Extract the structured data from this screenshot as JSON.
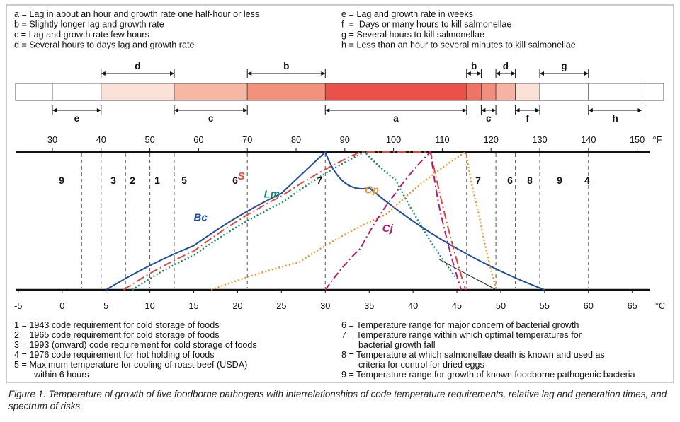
{
  "legend_letters": [
    "a = Lag in about an hour and growth rate one half-hour or less",
    "b = Slightly longer lag and growth rate",
    "c = Lag and growth rate few hours",
    "d = Several hours to days lag and growth rate",
    "e = Lag and growth rate in weeks",
    "f  =  Days or many hours to kill salmonellae",
    "g = Several hours to kill salmonellae",
    "h = Less than an hour to several minutes to kill salmonellae"
  ],
  "bar_segments": [
    {
      "from_f": 30,
      "to_f": 40,
      "color": "#ffffff"
    },
    {
      "from_f": 40,
      "to_f": 55,
      "color": "#fbe2d8"
    },
    {
      "from_f": 55,
      "to_f": 70,
      "color": "#f6b7a3"
    },
    {
      "from_f": 70,
      "to_f": 86,
      "color": "#f2917c"
    },
    {
      "from_f": 86,
      "to_f": 115,
      "color": "#e9524a"
    },
    {
      "from_f": 115,
      "to_f": 118,
      "color": "#ee7563"
    },
    {
      "from_f": 118,
      "to_f": 121,
      "color": "#f28e7b"
    },
    {
      "from_f": 121,
      "to_f": 125,
      "color": "#f6b3a1"
    },
    {
      "from_f": 125,
      "to_f": 130,
      "color": "#fbe1d6"
    },
    {
      "from_f": 130,
      "to_f": 140,
      "color": "#ffffff"
    },
    {
      "from_f": 140,
      "to_f": 151,
      "color": "#ffffff"
    }
  ],
  "top_arrows": [
    {
      "label": "d",
      "from_f": 40,
      "to_f": 55
    },
    {
      "label": "b",
      "from_f": 70,
      "to_f": 86
    },
    {
      "label": "b",
      "from_f": 115,
      "to_f": 118
    },
    {
      "label": "d",
      "from_f": 121,
      "to_f": 125
    },
    {
      "label": "g",
      "from_f": 130,
      "to_f": 140
    }
  ],
  "bottom_arrows": [
    {
      "label": "e",
      "from_f": 30,
      "to_f": 40
    },
    {
      "label": "c",
      "from_f": 55,
      "to_f": 70
    },
    {
      "label": "a",
      "from_f": 86,
      "to_f": 115
    },
    {
      "label": "c",
      "from_f": 118,
      "to_f": 121
    },
    {
      "label": "f",
      "from_f": 125,
      "to_f": 130
    },
    {
      "label": "h",
      "from_f": 140,
      "to_f": 151
    }
  ],
  "chart_data": {
    "type": "line",
    "f_unit": "°F",
    "c_unit": "°C",
    "f_ticks": [
      30,
      40,
      50,
      60,
      70,
      80,
      90,
      100,
      110,
      120,
      130,
      140,
      150
    ],
    "c_ticks": [
      -5,
      0,
      5,
      10,
      15,
      20,
      25,
      30,
      35,
      40,
      45,
      50,
      55,
      60,
      65
    ],
    "reference_lines": [
      {
        "f": 36,
        "label": "9"
      },
      {
        "f": 40,
        "label": "3"
      },
      {
        "f": 45,
        "label": "2"
      },
      {
        "f": 50,
        "label": "1"
      },
      {
        "f": 55,
        "label": "5"
      },
      {
        "f": 70,
        "label": "6"
      },
      {
        "f": 86,
        "label": "7"
      },
      {
        "f": 115,
        "label": "7"
      },
      {
        "f": 121,
        "label": "6"
      },
      {
        "f": 125,
        "label": "8"
      },
      {
        "f": 130,
        "label": "9"
      },
      {
        "f": 140,
        "label": "4"
      }
    ],
    "series": [
      {
        "name": "Bc",
        "color": "#1f4e9e",
        "style": "solid",
        "label_pos_c": [
          15,
          50
        ],
        "points_c": [
          [
            5,
            0
          ],
          [
            15,
            32
          ],
          [
            25,
            70
          ],
          [
            30,
            100
          ],
          [
            35,
            74
          ],
          [
            45,
            30
          ],
          [
            55,
            0
          ]
        ]
      },
      {
        "name": "S",
        "color": "#e4473a",
        "style": "dashdot",
        "label_pos_c": [
          20,
          80
        ],
        "points_c": [
          [
            7,
            0
          ],
          [
            15,
            28
          ],
          [
            25,
            68
          ],
          [
            34,
            100
          ],
          [
            42,
            100
          ],
          [
            46,
            0
          ]
        ]
      },
      {
        "name": "Lm",
        "color": "#138a6b",
        "style": "dotted",
        "label_pos_c": [
          23,
          67
        ],
        "points_c": [
          [
            8,
            0
          ],
          [
            15,
            25
          ],
          [
            25,
            63
          ],
          [
            34.5,
            100
          ],
          [
            38,
            80
          ],
          [
            45,
            8
          ]
        ]
      },
      {
        "name": "Cp",
        "color": "#f0932b",
        "style": "dotted",
        "label_pos_c": [
          34.5,
          70
        ],
        "points_c": [
          [
            17,
            0
          ],
          [
            27,
            20
          ],
          [
            37,
            55
          ],
          [
            46,
            100
          ],
          [
            47.5,
            55
          ],
          [
            49.5,
            0
          ]
        ]
      },
      {
        "name": "Cj",
        "color": "#b21a6e",
        "style": "dashdot2",
        "label_pos_c": [
          36.5,
          42
        ],
        "points_c": [
          [
            30,
            0
          ],
          [
            34,
            30
          ],
          [
            38,
            70
          ],
          [
            42,
            100
          ],
          [
            43,
            60
          ],
          [
            45.5,
            0
          ]
        ]
      }
    ]
  },
  "notes_left": [
    "1 = 1943 code requirement for cold storage of foods",
    "2 = 1965 code requirement for cold storage of foods",
    "3 = 1993 (onward) code requirement for cold storage of foods",
    "4 = 1976 code requirement for hot holding of foods",
    "5 = Maximum temperature for cooling of roast beef (USDA)",
    "within 6 hours"
  ],
  "notes_right": [
    "6 = Temperature range for major concern of bacterial growth",
    "7 = Temperature range within which optimal temperatures for",
    "bacterial growth fall",
    "8 = Temperature at which salmonellae death is known and used as",
    "criteria for control for dried eggs",
    "9 = Temperature range for growth of known foodborne pathogenic bacteria"
  ],
  "caption": "Figure 1. Temperature of growth of five foodborne pathogens with interrelationships of code temperature requirements, relative lag and generation times, and spectrum of risks."
}
